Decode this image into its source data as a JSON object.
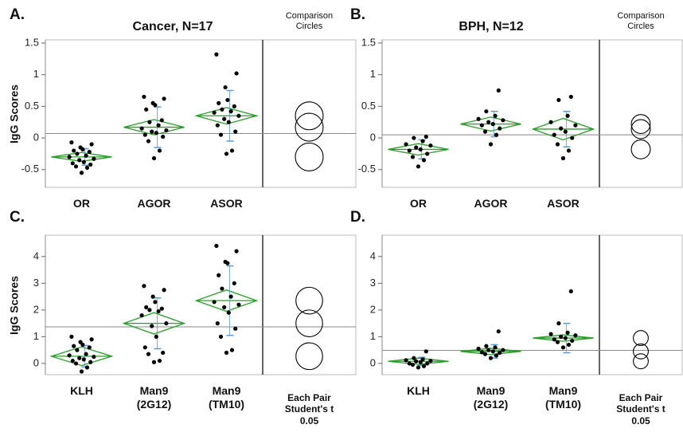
{
  "chart_data": [
    {
      "type": "oneway",
      "letter": "A.",
      "title": "Cancer, N=17",
      "ylabel": "IgG Scores",
      "circles_label": "Comparison Circles",
      "categories": [
        "OR",
        "AGOR",
        "ASOR"
      ],
      "points": [
        [
          -0.55,
          -0.47,
          -0.45,
          -0.42,
          -0.4,
          -0.38,
          -0.35,
          -0.33,
          -0.3,
          -0.28,
          -0.25,
          -0.22,
          -0.2,
          -0.18,
          -0.15,
          -0.1,
          -0.07
        ],
        [
          -0.32,
          -0.2,
          -0.05,
          0.02,
          0.05,
          0.08,
          0.1,
          0.12,
          0.15,
          0.2,
          0.25,
          0.28,
          0.45,
          0.52,
          0.55,
          0.62,
          0.65
        ],
        [
          -0.25,
          -0.2,
          0.05,
          0.1,
          0.2,
          0.25,
          0.3,
          0.35,
          0.4,
          0.42,
          0.45,
          0.5,
          0.55,
          0.6,
          0.8,
          1.02,
          1.32
        ]
      ],
      "means": [
        -0.3,
        0.17,
        0.35
      ],
      "ci": [
        0.07,
        0.12,
        0.13
      ],
      "sd": [
        0.13,
        0.32,
        0.4
      ],
      "circle_radius": [
        0.22,
        0.22,
        0.22
      ],
      "grand_mean": 0.07,
      "ylim": [
        -0.78,
        1.55
      ],
      "yticks": [
        -0.5,
        0,
        0.5,
        1,
        1.5
      ]
    },
    {
      "type": "oneway",
      "letter": "B.",
      "title": "BPH, N=12",
      "circles_label": "Comparison Circles",
      "categories": [
        "OR",
        "AGOR",
        "ASOR"
      ],
      "points": [
        [
          -0.45,
          -0.35,
          -0.3,
          -0.25,
          -0.2,
          -0.18,
          -0.15,
          -0.12,
          -0.1,
          -0.05,
          0,
          0.02
        ],
        [
          -0.1,
          0.05,
          0.1,
          0.15,
          0.2,
          0.22,
          0.25,
          0.28,
          0.3,
          0.35,
          0.42,
          0.75
        ],
        [
          -0.32,
          -0.2,
          -0.1,
          0,
          0.05,
          0.1,
          0.15,
          0.2,
          0.25,
          0.35,
          0.6,
          0.65
        ]
      ],
      "means": [
        -0.18,
        0.22,
        0.14
      ],
      "ci": [
        0.09,
        0.11,
        0.17
      ],
      "sd": [
        0.15,
        0.2,
        0.28
      ],
      "circle_radius": [
        0.15,
        0.15,
        0.15
      ],
      "grand_mean": 0.05,
      "ylim": [
        -0.78,
        1.55
      ],
      "yticks": [
        -0.5,
        0,
        0.5,
        1,
        1.5
      ]
    },
    {
      "type": "oneway",
      "letter": "C.",
      "ylabel": "IgG Scores",
      "test_label": "Each Pair Student's t 0.05",
      "categories": [
        "KLH",
        "Man9 (2G12)",
        "Man9 (TM10)"
      ],
      "points": [
        [
          -0.3,
          -0.15,
          0,
          0.05,
          0.1,
          0.15,
          0.2,
          0.25,
          0.3,
          0.35,
          0.5,
          0.6,
          0.65,
          0.7,
          0.8,
          0.9,
          1.0
        ],
        [
          0.05,
          0.1,
          0.35,
          0.4,
          0.6,
          1.0,
          1.4,
          1.5,
          1.8,
          1.95,
          2.0,
          2.05,
          2.1,
          2.3,
          2.5,
          2.75,
          2.9
        ],
        [
          0.4,
          0.5,
          1.0,
          1.3,
          1.5,
          1.9,
          2.1,
          2.2,
          2.3,
          2.5,
          2.8,
          3.0,
          3.3,
          3.75,
          3.8,
          4.2,
          4.4
        ]
      ],
      "means": [
        0.27,
        1.5,
        2.35
      ],
      "ci": [
        0.35,
        0.4,
        0.4
      ],
      "sd": [
        0.4,
        0.95,
        1.3
      ],
      "circle_radius": [
        0.5,
        0.5,
        0.5
      ],
      "grand_mean": 1.37,
      "ylim": [
        -0.42,
        4.8
      ],
      "yticks": [
        0,
        1,
        2,
        3,
        4
      ]
    },
    {
      "type": "oneway",
      "letter": "D.",
      "test_label": "Each Pair Student's t 0.05",
      "categories": [
        "KLH",
        "Man9 (2G12)",
        "Man9 (TM10)"
      ],
      "points": [
        [
          -0.15,
          -0.1,
          -0.05,
          0,
          0,
          0.05,
          0.08,
          0.1,
          0.12,
          0.15,
          0.2,
          0.45
        ],
        [
          0.2,
          0.3,
          0.35,
          0.4,
          0.42,
          0.45,
          0.5,
          0.5,
          0.55,
          0.6,
          0.65,
          1.2
        ],
        [
          0.6,
          0.7,
          0.8,
          0.85,
          0.9,
          0.95,
          1.0,
          1.05,
          1.1,
          1.15,
          1.5,
          2.7
        ]
      ],
      "means": [
        0.08,
        0.45,
        0.95
      ],
      "ci": [
        0.12,
        0.12,
        0.12
      ],
      "sd": [
        0.15,
        0.25,
        0.55
      ],
      "circle_radius": [
        0.28,
        0.28,
        0.28
      ],
      "grand_mean": 0.49,
      "ylim": [
        -0.42,
        4.8
      ],
      "yticks": [
        0,
        1,
        2,
        3,
        4
      ]
    }
  ]
}
